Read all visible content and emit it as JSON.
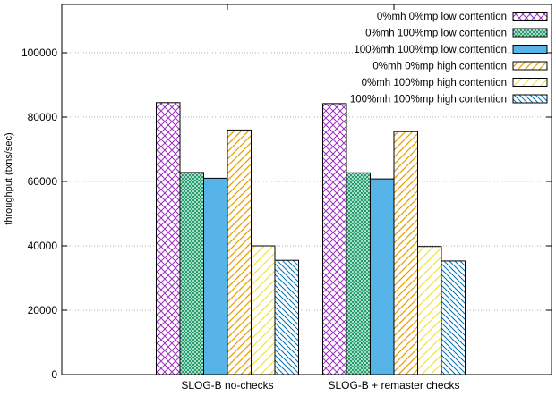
{
  "chart_data": {
    "type": "bar",
    "title": "",
    "xlabel": "",
    "ylabel": "throughput (txns/sec)",
    "ylim": [
      0,
      115000
    ],
    "yticks": [
      0,
      20000,
      40000,
      60000,
      80000,
      100000
    ],
    "grid": "horizontal dotted",
    "legend_position": "top-right",
    "categories": [
      "SLOG-B no-checks",
      "SLOG-B + remaster checks"
    ],
    "series": [
      {
        "name": "0%mh 0%mp low contention",
        "values": [
          84500,
          84200
        ],
        "color": "#9a2fc0",
        "pattern": "crosshatch"
      },
      {
        "name": "0%mh 100%mp low contention",
        "values": [
          62800,
          62700
        ],
        "color": "#1f9e6c",
        "pattern": "dense-crosshatch"
      },
      {
        "name": "100%mh 100%mp low contention",
        "values": [
          61000,
          60800
        ],
        "color": "#56b4e9",
        "pattern": "solid"
      },
      {
        "name": "0%mh 0%mp high contention",
        "values": [
          76000,
          75500
        ],
        "color": "#e69f00",
        "pattern": "diagonal-right"
      },
      {
        "name": "0%mh 100%mp high contention",
        "values": [
          40000,
          39800
        ],
        "color": "#f0e442",
        "pattern": "diagonal-right-sparse"
      },
      {
        "name": "100%mh 100%mp high contention",
        "values": [
          35500,
          35300
        ],
        "color": "#0072b2",
        "pattern": "diagonal-left"
      }
    ]
  }
}
